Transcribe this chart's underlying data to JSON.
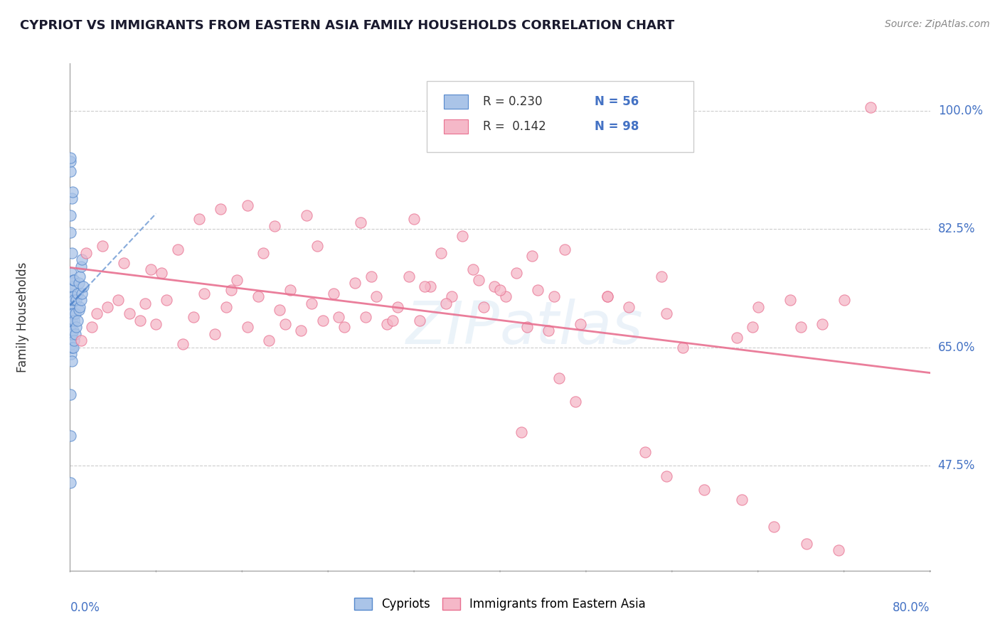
{
  "title": "CYPRIOT VS IMMIGRANTS FROM EASTERN ASIA FAMILY HOUSEHOLDS CORRELATION CHART",
  "source": "Source: ZipAtlas.com",
  "ylabel": "Family Households",
  "ylabel_ticks": [
    "47.5%",
    "65.0%",
    "82.5%",
    "100.0%"
  ],
  "ylabel_tick_vals": [
    47.5,
    65.0,
    82.5,
    100.0
  ],
  "xmin": 0.0,
  "xmax": 80.0,
  "ymin": 32.0,
  "ymax": 107.0,
  "blue_color": "#aac4e8",
  "blue_edge_color": "#5588cc",
  "pink_color": "#f5b8c8",
  "pink_edge_color": "#e87090",
  "trend_blue_color": "#5588cc",
  "trend_pink_color": "#e87090",
  "blue_scatter_x": [
    0.05,
    0.05,
    0.05,
    0.05,
    0.05,
    0.05,
    0.05,
    0.1,
    0.1,
    0.1,
    0.1,
    0.1,
    0.1,
    0.1,
    0.1,
    0.2,
    0.2,
    0.2,
    0.2,
    0.2,
    0.2,
    0.3,
    0.3,
    0.3,
    0.3,
    0.3,
    0.4,
    0.4,
    0.4,
    0.4,
    0.5,
    0.5,
    0.6,
    0.6,
    0.7,
    0.7,
    0.8,
    0.8,
    0.9,
    0.9,
    1.0,
    1.0,
    1.1,
    1.1,
    1.2,
    0.05,
    0.05,
    0.15,
    0.15,
    0.25,
    0.05,
    0.05,
    0.05,
    0.05,
    0.05,
    0.05
  ],
  "blue_scatter_y": [
    66.0,
    67.5,
    68.0,
    69.0,
    70.0,
    71.5,
    73.0,
    64.0,
    65.5,
    67.0,
    68.5,
    70.0,
    72.0,
    74.0,
    76.0,
    63.0,
    65.0,
    67.0,
    69.0,
    71.5,
    74.0,
    65.0,
    67.5,
    70.0,
    72.5,
    75.0,
    66.0,
    69.0,
    72.0,
    75.0,
    67.0,
    70.0,
    68.0,
    72.0,
    69.0,
    73.0,
    70.5,
    74.5,
    71.0,
    75.5,
    72.0,
    77.0,
    73.0,
    78.0,
    74.0,
    82.0,
    84.5,
    79.0,
    87.0,
    88.0,
    91.0,
    92.5,
    93.0,
    58.0,
    52.0,
    45.0
  ],
  "pink_scatter_x": [
    1.0,
    2.0,
    2.5,
    3.5,
    4.5,
    5.5,
    6.5,
    7.0,
    8.0,
    9.0,
    10.5,
    11.5,
    12.5,
    13.5,
    14.5,
    15.5,
    16.5,
    17.5,
    18.5,
    19.5,
    20.5,
    21.5,
    22.5,
    23.5,
    24.5,
    25.5,
    26.5,
    27.5,
    28.5,
    29.5,
    30.5,
    31.5,
    32.5,
    33.5,
    34.5,
    35.5,
    36.5,
    37.5,
    38.5,
    39.5,
    40.5,
    41.5,
    42.5,
    43.5,
    44.5,
    15.0,
    20.0,
    25.0,
    30.0,
    35.0,
    38.0,
    43.0,
    46.0,
    47.5,
    50.0,
    52.0,
    55.0,
    57.0,
    62.0,
    64.0,
    67.0,
    68.0,
    70.0,
    72.0,
    74.5,
    1.5,
    3.0,
    5.0,
    7.5,
    10.0,
    12.0,
    14.0,
    16.5,
    19.0,
    22.0,
    27.0,
    32.0,
    45.5,
    47.0,
    42.0,
    53.5,
    55.5,
    59.0,
    62.5,
    65.5,
    68.5,
    71.5,
    8.5,
    18.0,
    23.0,
    28.0,
    33.0,
    40.0,
    45.0,
    50.0,
    55.5,
    63.5
  ],
  "pink_scatter_y": [
    66.0,
    68.0,
    70.0,
    71.0,
    72.0,
    70.0,
    69.0,
    71.5,
    68.5,
    72.0,
    65.5,
    69.5,
    73.0,
    67.0,
    71.0,
    75.0,
    68.0,
    72.5,
    66.0,
    70.5,
    73.5,
    67.5,
    71.5,
    69.0,
    73.0,
    68.0,
    74.5,
    69.5,
    72.5,
    68.5,
    71.0,
    75.5,
    69.0,
    74.0,
    79.0,
    72.5,
    81.5,
    76.5,
    71.0,
    74.0,
    72.5,
    76.0,
    68.0,
    73.5,
    67.5,
    73.5,
    68.5,
    69.5,
    69.0,
    71.5,
    75.0,
    78.5,
    79.5,
    68.5,
    72.5,
    71.0,
    75.5,
    65.0,
    66.5,
    71.0,
    72.0,
    68.0,
    68.5,
    72.0,
    100.5,
    79.0,
    80.0,
    77.5,
    76.5,
    79.5,
    84.0,
    85.5,
    86.0,
    83.0,
    84.5,
    83.5,
    84.0,
    60.5,
    57.0,
    52.5,
    49.5,
    46.0,
    44.0,
    42.5,
    38.5,
    36.0,
    35.0,
    76.0,
    79.0,
    80.0,
    75.5,
    74.0,
    73.5,
    72.5,
    72.5,
    70.0,
    68.0
  ]
}
